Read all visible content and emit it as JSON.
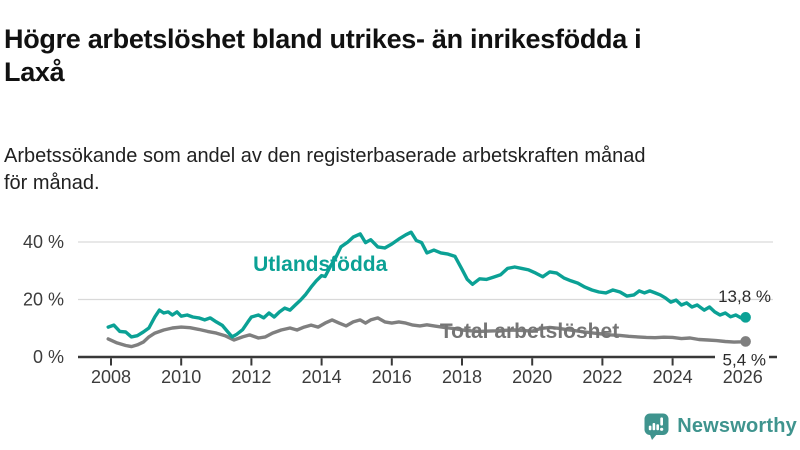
{
  "header": {
    "title_lines": [
      "Högre arbetslöshet bland utrikes- än inrikesfödda i",
      "Laxå"
    ],
    "subtitle_lines": [
      "Arbetssökande som andel av den registerbaserade arbetskraften månad",
      "för månad."
    ]
  },
  "colors": {
    "accent_teal": "#0ba195",
    "line_gray": "#7f7f7f",
    "gray_label": "#757575",
    "axis": "#383838",
    "grid": "#d9d9d9",
    "tick_text": "#3c3c3c",
    "end_label_text": "#2b2b2b",
    "logo_teal": "#3f948e"
  },
  "chart_data": {
    "type": "line",
    "xlabel": "",
    "ylabel": "",
    "grid": true,
    "xlim": [
      2007.06,
      2027.0
    ],
    "ylim": [
      0,
      45
    ],
    "y_ticks": [
      {
        "v": 0,
        "label": "0 %"
      },
      {
        "v": 20,
        "label": "20 %"
      },
      {
        "v": 40,
        "label": "40 %"
      }
    ],
    "x_ticks": [
      {
        "v": 2008,
        "label": "2008"
      },
      {
        "v": 2010,
        "label": "2010"
      },
      {
        "v": 2012,
        "label": "2012"
      },
      {
        "v": 2014,
        "label": "2014"
      },
      {
        "v": 2016,
        "label": "2016"
      },
      {
        "v": 2018,
        "label": "2018"
      },
      {
        "v": 2020,
        "label": "2020"
      },
      {
        "v": 2022,
        "label": "2022"
      },
      {
        "v": 2024,
        "label": "2024"
      },
      {
        "v": 2026,
        "label": "2026"
      }
    ],
    "series": [
      {
        "name": "Total arbetslöshet",
        "color": "#7f7f7f",
        "label_color": "#757575",
        "label": {
          "text": "Total arbetslöshet",
          "x": 2017.37,
          "y": 6.6
        },
        "end_label": "5,4 %",
        "end_label_on_axis": true,
        "x": [
          2007.92,
          2008.17,
          2008.42,
          2008.58,
          2008.75,
          2008.92,
          2009.08,
          2009.25,
          2009.5,
          2009.75,
          2010.0,
          2010.25,
          2010.5,
          2010.75,
          2011.0,
          2011.25,
          2011.5,
          2011.75,
          2011.95,
          2012.2,
          2012.4,
          2012.6,
          2012.85,
          2013.1,
          2013.3,
          2013.5,
          2013.7,
          2013.9,
          2014.1,
          2014.3,
          2014.5,
          2014.7,
          2014.9,
          2015.1,
          2015.25,
          2015.4,
          2015.6,
          2015.8,
          2016.0,
          2016.2,
          2016.4,
          2016.6,
          2016.8,
          2017.0,
          2017.25,
          2017.5,
          2017.75,
          2018.0,
          2018.25,
          2018.5,
          2018.75,
          2019.0,
          2019.25,
          2019.5,
          2019.75,
          2020.0,
          2020.25,
          2020.5,
          2020.75,
          2021.0,
          2021.25,
          2021.5,
          2021.75,
          2022.0,
          2022.25,
          2022.5,
          2022.75,
          2023.0,
          2023.25,
          2023.5,
          2023.75,
          2024.0,
          2024.25,
          2024.5,
          2024.75,
          2025.0,
          2025.25,
          2025.5,
          2025.75,
          2026.0,
          2026.08
        ],
        "values": [
          6.3,
          4.9,
          4.0,
          3.6,
          4.2,
          5.2,
          7.0,
          8.3,
          9.4,
          10.1,
          10.4,
          10.2,
          9.6,
          8.9,
          8.3,
          7.4,
          5.9,
          7.0,
          7.7,
          6.6,
          7.0,
          8.3,
          9.4,
          10.1,
          9.4,
          10.4,
          11.1,
          10.4,
          11.8,
          12.9,
          11.8,
          10.8,
          12.2,
          12.9,
          11.8,
          12.9,
          13.6,
          12.2,
          11.8,
          12.2,
          11.8,
          11.1,
          10.8,
          11.2,
          10.7,
          10.3,
          9.9,
          9.4,
          9.1,
          8.9,
          9.0,
          9.1,
          9.3,
          9.4,
          9.2,
          9.0,
          9.9,
          10.3,
          10.0,
          9.5,
          9.1,
          8.7,
          8.3,
          8.0,
          7.7,
          7.5,
          7.2,
          7.0,
          6.8,
          6.7,
          6.9,
          6.8,
          6.4,
          6.6,
          6.1,
          5.9,
          5.7,
          5.4,
          5.2,
          5.3,
          5.4
        ]
      },
      {
        "name": "Utlandsfödda",
        "color": "#0ba195",
        "label_color": "#0ba195",
        "label": {
          "text": "Utlandsfödda",
          "x": 2012.05,
          "y": 29.9
        },
        "end_label": "13,8 %",
        "end_label_on_axis": false,
        "x": [
          2007.92,
          2008.08,
          2008.25,
          2008.42,
          2008.58,
          2008.75,
          2008.92,
          2009.08,
          2009.25,
          2009.38,
          2009.5,
          2009.63,
          2009.75,
          2009.88,
          2010.0,
          2010.17,
          2010.33,
          2010.5,
          2010.67,
          2010.83,
          2011.0,
          2011.17,
          2011.33,
          2011.45,
          2011.58,
          2011.75,
          2011.9,
          2012.0,
          2012.2,
          2012.35,
          2012.5,
          2012.65,
          2012.8,
          2012.95,
          2013.1,
          2013.25,
          2013.4,
          2013.55,
          2013.7,
          2013.85,
          2014.0,
          2014.1,
          2014.25,
          2014.4,
          2014.55,
          2014.75,
          2014.9,
          2015.1,
          2015.25,
          2015.4,
          2015.6,
          2015.8,
          2016.0,
          2016.2,
          2016.4,
          2016.55,
          2016.7,
          2016.85,
          2017.0,
          2017.2,
          2017.4,
          2017.6,
          2017.8,
          2018.0,
          2018.15,
          2018.3,
          2018.5,
          2018.7,
          2018.9,
          2019.1,
          2019.3,
          2019.5,
          2019.7,
          2019.9,
          2020.1,
          2020.3,
          2020.5,
          2020.7,
          2020.9,
          2021.1,
          2021.3,
          2021.5,
          2021.7,
          2021.9,
          2022.1,
          2022.3,
          2022.5,
          2022.7,
          2022.9,
          2023.05,
          2023.2,
          2023.35,
          2023.5,
          2023.65,
          2023.8,
          2023.95,
          2024.1,
          2024.25,
          2024.4,
          2024.55,
          2024.7,
          2024.9,
          2025.05,
          2025.2,
          2025.35,
          2025.5,
          2025.65,
          2025.8,
          2025.95,
          2026.08
        ],
        "values": [
          10.4,
          11.1,
          8.9,
          8.7,
          7.0,
          7.4,
          8.7,
          10.1,
          14.0,
          16.3,
          15.3,
          15.7,
          14.6,
          15.7,
          14.2,
          14.6,
          13.9,
          13.6,
          12.9,
          13.6,
          12.2,
          11.0,
          8.7,
          7.0,
          7.9,
          9.5,
          12.2,
          13.9,
          14.6,
          13.6,
          15.3,
          13.9,
          15.7,
          17.0,
          16.3,
          18.1,
          19.8,
          21.8,
          24.3,
          26.5,
          28.3,
          28.0,
          31.5,
          34.5,
          38.3,
          40.0,
          41.7,
          42.8,
          39.8,
          40.8,
          38.3,
          37.9,
          39.3,
          41.0,
          42.5,
          43.4,
          40.5,
          39.8,
          36.2,
          37.2,
          36.2,
          35.8,
          35.0,
          30.5,
          27.0,
          25.3,
          27.2,
          27.0,
          27.8,
          28.6,
          30.8,
          31.3,
          30.8,
          30.3,
          29.2,
          27.9,
          29.6,
          29.2,
          27.5,
          26.5,
          25.7,
          24.3,
          23.3,
          22.6,
          22.3,
          23.3,
          22.6,
          21.2,
          21.6,
          23.0,
          22.3,
          23.0,
          22.3,
          21.6,
          20.5,
          19.1,
          19.8,
          18.1,
          18.8,
          17.4,
          18.1,
          16.3,
          17.4,
          15.7,
          14.6,
          15.3,
          14.0,
          14.6,
          13.6,
          13.8
        ]
      }
    ]
  },
  "logo": {
    "text": "Newsworthy",
    "icon": "newsworthy-bubble-barchart-icon"
  }
}
